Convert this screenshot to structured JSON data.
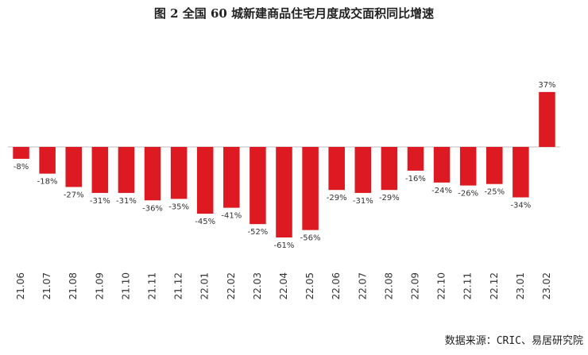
{
  "page": {
    "title": "图 2   全国 60 城新建商品住宅月度成交面积同比增速",
    "source": "数据来源：CRIC、易居研究院"
  },
  "chart_data": {
    "type": "bar",
    "title": "图 2   全国 60 城新建商品住宅月度成交面积同比增速",
    "categories": [
      "21.06",
      "21.07",
      "21.08",
      "21.09",
      "21.10",
      "21.11",
      "21.12",
      "22.01",
      "22.02",
      "22.03",
      "22.04",
      "22.05",
      "22.06",
      "22.07",
      "22.08",
      "22.09",
      "22.10",
      "22.11",
      "22.12",
      "23.01",
      "23.02"
    ],
    "values": [
      -8,
      -18,
      -27,
      -31,
      -31,
      -36,
      -35,
      -45,
      -41,
      -52,
      -61,
      -56,
      -29,
      -31,
      -29,
      -16,
      -24,
      -26,
      -25,
      -34,
      37
    ],
    "value_labels": [
      "-8%",
      "-18%",
      "-27%",
      "-31%",
      "-31%",
      "-36%",
      "-35%",
      "-45%",
      "-41%",
      "-52%",
      "-61%",
      "-56%",
      "-29%",
      "-31%",
      "-29%",
      "-16%",
      "-24%",
      "-26%",
      "-25%",
      "-34%",
      "37%"
    ],
    "unit": "%",
    "bar_color": "#dd1a22",
    "axis_color": "#bfbfbf",
    "ylim": [
      -61,
      37
    ],
    "grid": false,
    "legend": "none"
  }
}
